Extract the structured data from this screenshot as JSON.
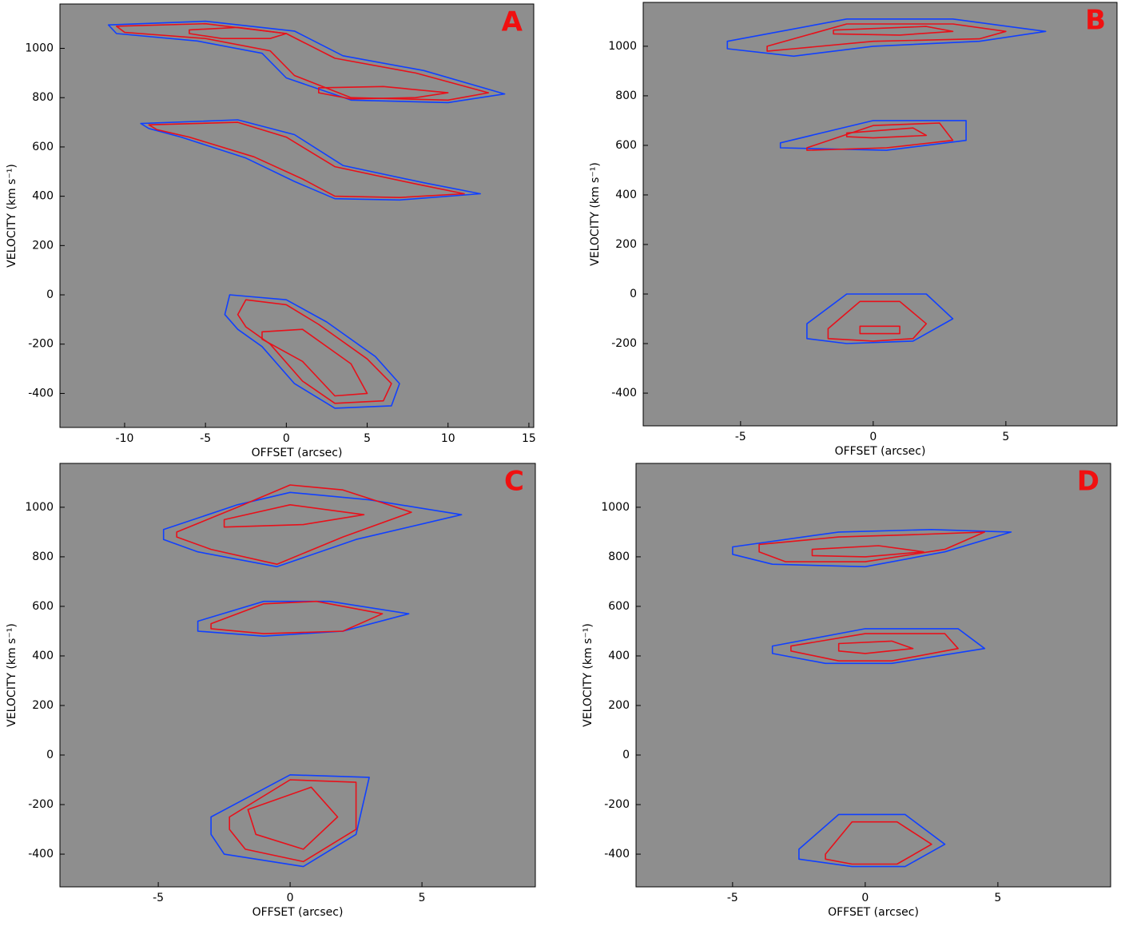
{
  "chart_data": [
    {
      "type": "contour",
      "label": "A",
      "xlabel": "OFFSET (arcsec)",
      "ylabel": "VELOCITY (km s⁻¹)",
      "xlim": [
        -14,
        15.3
      ],
      "ylim": [
        -538,
        1180
      ],
      "xticks": [
        -10,
        -5,
        0,
        5,
        10,
        15
      ],
      "yticks": [
        -400,
        -200,
        0,
        200,
        400,
        600,
        800,
        1000
      ],
      "contours": [
        {
          "color": "#1040ff",
          "x": [
            -11,
            -5,
            0.5,
            3.5,
            8.5,
            13.5,
            10,
            4,
            0,
            -1.5,
            -5.5,
            -10.5
          ],
          "y": [
            1095,
            1110,
            1070,
            970,
            910,
            815,
            780,
            790,
            880,
            980,
            1030,
            1060
          ]
        },
        {
          "color": "#e8101a",
          "x": [
            -10.5,
            -5,
            0,
            3,
            8,
            12.5,
            10,
            4,
            0.5,
            -1,
            -5,
            -10
          ],
          "y": [
            1090,
            1100,
            1060,
            960,
            900,
            820,
            790,
            800,
            890,
            990,
            1040,
            1065
          ]
        },
        {
          "color": "#e8101a",
          "x": [
            -6,
            -3,
            0,
            -1,
            -4,
            -6
          ],
          "y": [
            1075,
            1085,
            1060,
            1040,
            1040,
            1060
          ]
        },
        {
          "color": "#e8101a",
          "x": [
            2,
            6,
            10,
            8,
            4,
            2
          ],
          "y": [
            840,
            845,
            820,
            800,
            795,
            820
          ]
        },
        {
          "color": "#1040ff",
          "x": [
            -9,
            -3,
            0.5,
            3.5,
            8.5,
            12,
            7,
            3,
            0.5,
            -2.5,
            -6.5,
            -8.5
          ],
          "y": [
            695,
            710,
            650,
            525,
            455,
            410,
            385,
            390,
            460,
            555,
            640,
            675
          ]
        },
        {
          "color": "#e8101a",
          "x": [
            -8.5,
            -3,
            0,
            3,
            8,
            11,
            7,
            3,
            1,
            -2,
            -6,
            -8
          ],
          "y": [
            690,
            700,
            640,
            520,
            450,
            410,
            395,
            400,
            470,
            560,
            640,
            670
          ]
        },
        {
          "color": "#1040ff",
          "x": [
            -3.5,
            0,
            2.5,
            5.5,
            7,
            6.5,
            3,
            0.5,
            -1.5,
            -3,
            -3.8
          ],
          "y": [
            0,
            -20,
            -110,
            -250,
            -360,
            -450,
            -460,
            -360,
            -210,
            -140,
            -80
          ]
        },
        {
          "color": "#e8101a",
          "x": [
            -2.5,
            0,
            2,
            5,
            6.5,
            6,
            3,
            1,
            -1,
            -2.5,
            -3
          ],
          "y": [
            -20,
            -40,
            -120,
            -260,
            -360,
            -430,
            -440,
            -350,
            -200,
            -130,
            -80
          ]
        },
        {
          "color": "#e8101a",
          "x": [
            -1.5,
            1,
            4,
            5,
            3,
            1,
            -1.5
          ],
          "y": [
            -150,
            -140,
            -280,
            -400,
            -410,
            -270,
            -180
          ]
        }
      ]
    },
    {
      "type": "contour",
      "label": "B",
      "xlabel": "OFFSET (arcsec)",
      "ylabel": "VELOCITY (km s⁻¹)",
      "xlim": [
        -8.67,
        9.19
      ],
      "ylim": [
        -532,
        1177
      ],
      "xticks": [
        -5,
        0,
        5
      ],
      "yticks": [
        -400,
        -200,
        0,
        200,
        400,
        600,
        800,
        1000
      ],
      "contours": [
        {
          "color": "#1040ff",
          "x": [
            -5.5,
            -1,
            3,
            6.5,
            4,
            0,
            -3,
            -5.5
          ],
          "y": [
            1020,
            1110,
            1110,
            1060,
            1020,
            1000,
            960,
            990
          ]
        },
        {
          "color": "#e8101a",
          "x": [
            -4,
            -1,
            3,
            5,
            4,
            0,
            -3,
            -4
          ],
          "y": [
            1000,
            1090,
            1090,
            1060,
            1030,
            1020,
            990,
            980
          ]
        },
        {
          "color": "#e8101a",
          "x": [
            -1.5,
            2,
            3,
            1,
            -1.5
          ],
          "y": [
            1065,
            1080,
            1060,
            1045,
            1050
          ]
        },
        {
          "color": "#1040ff",
          "x": [
            -3.5,
            0,
            3.5,
            3.5,
            0.5,
            -3.5
          ],
          "y": [
            610,
            700,
            700,
            620,
            580,
            590
          ]
        },
        {
          "color": "#e8101a",
          "x": [
            -2.5,
            0,
            2.5,
            3,
            0.5,
            -2.5
          ],
          "y": [
            590,
            680,
            690,
            620,
            590,
            580
          ]
        },
        {
          "color": "#e8101a",
          "x": [
            -1,
            1.5,
            2,
            0,
            -1
          ],
          "y": [
            650,
            670,
            640,
            630,
            635
          ]
        },
        {
          "color": "#1040ff",
          "x": [
            -2.5,
            -1,
            2,
            3,
            1.5,
            -1,
            -2.5
          ],
          "y": [
            -120,
            0,
            0,
            -100,
            -190,
            -200,
            -180
          ]
        },
        {
          "color": "#e8101a",
          "x": [
            -1.7,
            -0.5,
            1,
            2,
            1.5,
            0,
            -1.7
          ],
          "y": [
            -140,
            -30,
            -30,
            -120,
            -180,
            -190,
            -180
          ]
        },
        {
          "color": "#e8101a",
          "x": [
            -0.5,
            1,
            1,
            -0.5
          ],
          "y": [
            -130,
            -130,
            -160,
            -160
          ]
        }
      ]
    },
    {
      "type": "contour",
      "label": "C",
      "xlabel": "OFFSET (arcsec)",
      "ylabel": "VELOCITY (km s⁻¹)",
      "xlim": [
        -8.73,
        9.3
      ],
      "ylim": [
        -532,
        1177
      ],
      "xticks": [
        -5,
        0,
        5
      ],
      "yticks": [
        -400,
        -200,
        0,
        200,
        400,
        600,
        800,
        1000
      ],
      "contours": [
        {
          "color": "#1040ff",
          "x": [
            -4.8,
            -2,
            0,
            3,
            6.5,
            2.5,
            -0.5,
            -3.5,
            -4.8
          ],
          "y": [
            910,
            1010,
            1060,
            1030,
            970,
            870,
            760,
            820,
            870
          ]
        },
        {
          "color": "#e8101a",
          "x": [
            -4.3,
            -2,
            0,
            2,
            4.6,
            2,
            -0.5,
            -3,
            -4.3
          ],
          "y": [
            900,
            1000,
            1090,
            1070,
            980,
            880,
            770,
            830,
            880
          ]
        },
        {
          "color": "#e8101a",
          "x": [
            -2.5,
            0,
            2.8,
            0.5,
            -2.5
          ],
          "y": [
            950,
            1010,
            970,
            930,
            920
          ]
        },
        {
          "color": "#1040ff",
          "x": [
            -3.5,
            -1,
            1.5,
            4.5,
            2,
            -1,
            -3.5
          ],
          "y": [
            540,
            620,
            620,
            570,
            500,
            480,
            500
          ]
        },
        {
          "color": "#e8101a",
          "x": [
            -3,
            -1,
            1,
            3.5,
            2,
            -1,
            -3
          ],
          "y": [
            530,
            610,
            620,
            570,
            500,
            490,
            510
          ]
        },
        {
          "color": "#1040ff",
          "x": [
            -3,
            0,
            3,
            2.5,
            0.5,
            -2.5,
            -3
          ],
          "y": [
            -250,
            -80,
            -90,
            -320,
            -450,
            -400,
            -320
          ]
        },
        {
          "color": "#e8101a",
          "x": [
            -2.3,
            0,
            2.5,
            2.5,
            0.5,
            -1.7,
            -2.3
          ],
          "y": [
            -250,
            -100,
            -110,
            -300,
            -430,
            -380,
            -300
          ]
        },
        {
          "color": "#e8101a",
          "x": [
            -1.6,
            0.8,
            1.8,
            0.5,
            -1.3
          ],
          "y": [
            -220,
            -130,
            -250,
            -380,
            -320
          ]
        }
      ]
    },
    {
      "type": "contour",
      "label": "D",
      "xlabel": "OFFSET (arcsec)",
      "ylabel": "VELOCITY (km s⁻¹)",
      "xlim": [
        -8.64,
        9.25
      ],
      "ylim": [
        -532,
        1177
      ],
      "xticks": [
        -5,
        0,
        5
      ],
      "yticks": [
        -400,
        -200,
        0,
        200,
        400,
        600,
        800,
        1000
      ],
      "contours": [
        {
          "color": "#1040ff",
          "x": [
            -5,
            -1,
            2.5,
            5.5,
            3,
            0,
            -3.5,
            -5
          ],
          "y": [
            840,
            900,
            910,
            900,
            820,
            760,
            770,
            810
          ]
        },
        {
          "color": "#e8101a",
          "x": [
            -4,
            -1,
            2,
            4.5,
            3,
            0,
            -3,
            -4
          ],
          "y": [
            850,
            880,
            890,
            900,
            830,
            780,
            780,
            820
          ]
        },
        {
          "color": "#e8101a",
          "x": [
            -2,
            0.5,
            2.2,
            0,
            -2
          ],
          "y": [
            830,
            845,
            820,
            800,
            805
          ]
        },
        {
          "color": "#1040ff",
          "x": [
            -3.5,
            0,
            3.5,
            4.5,
            1,
            -1.5,
            -3.5
          ],
          "y": [
            440,
            510,
            510,
            430,
            370,
            370,
            410
          ]
        },
        {
          "color": "#e8101a",
          "x": [
            -2.8,
            0,
            3,
            3.5,
            1,
            -1,
            -2.8
          ],
          "y": [
            440,
            490,
            490,
            430,
            380,
            380,
            420
          ]
        },
        {
          "color": "#e8101a",
          "x": [
            -1,
            1,
            1.8,
            0,
            -1
          ],
          "y": [
            450,
            460,
            430,
            410,
            420
          ]
        },
        {
          "color": "#1040ff",
          "x": [
            -2.5,
            -1,
            1.5,
            3,
            1.5,
            -0.5,
            -2.5
          ],
          "y": [
            -380,
            -240,
            -240,
            -360,
            -450,
            -450,
            -420
          ]
        },
        {
          "color": "#e8101a",
          "x": [
            -1.5,
            -0.5,
            1.2,
            2.5,
            1.2,
            -0.5,
            -1.5
          ],
          "y": [
            -400,
            -270,
            -270,
            -360,
            -440,
            -440,
            -420
          ]
        }
      ]
    }
  ]
}
